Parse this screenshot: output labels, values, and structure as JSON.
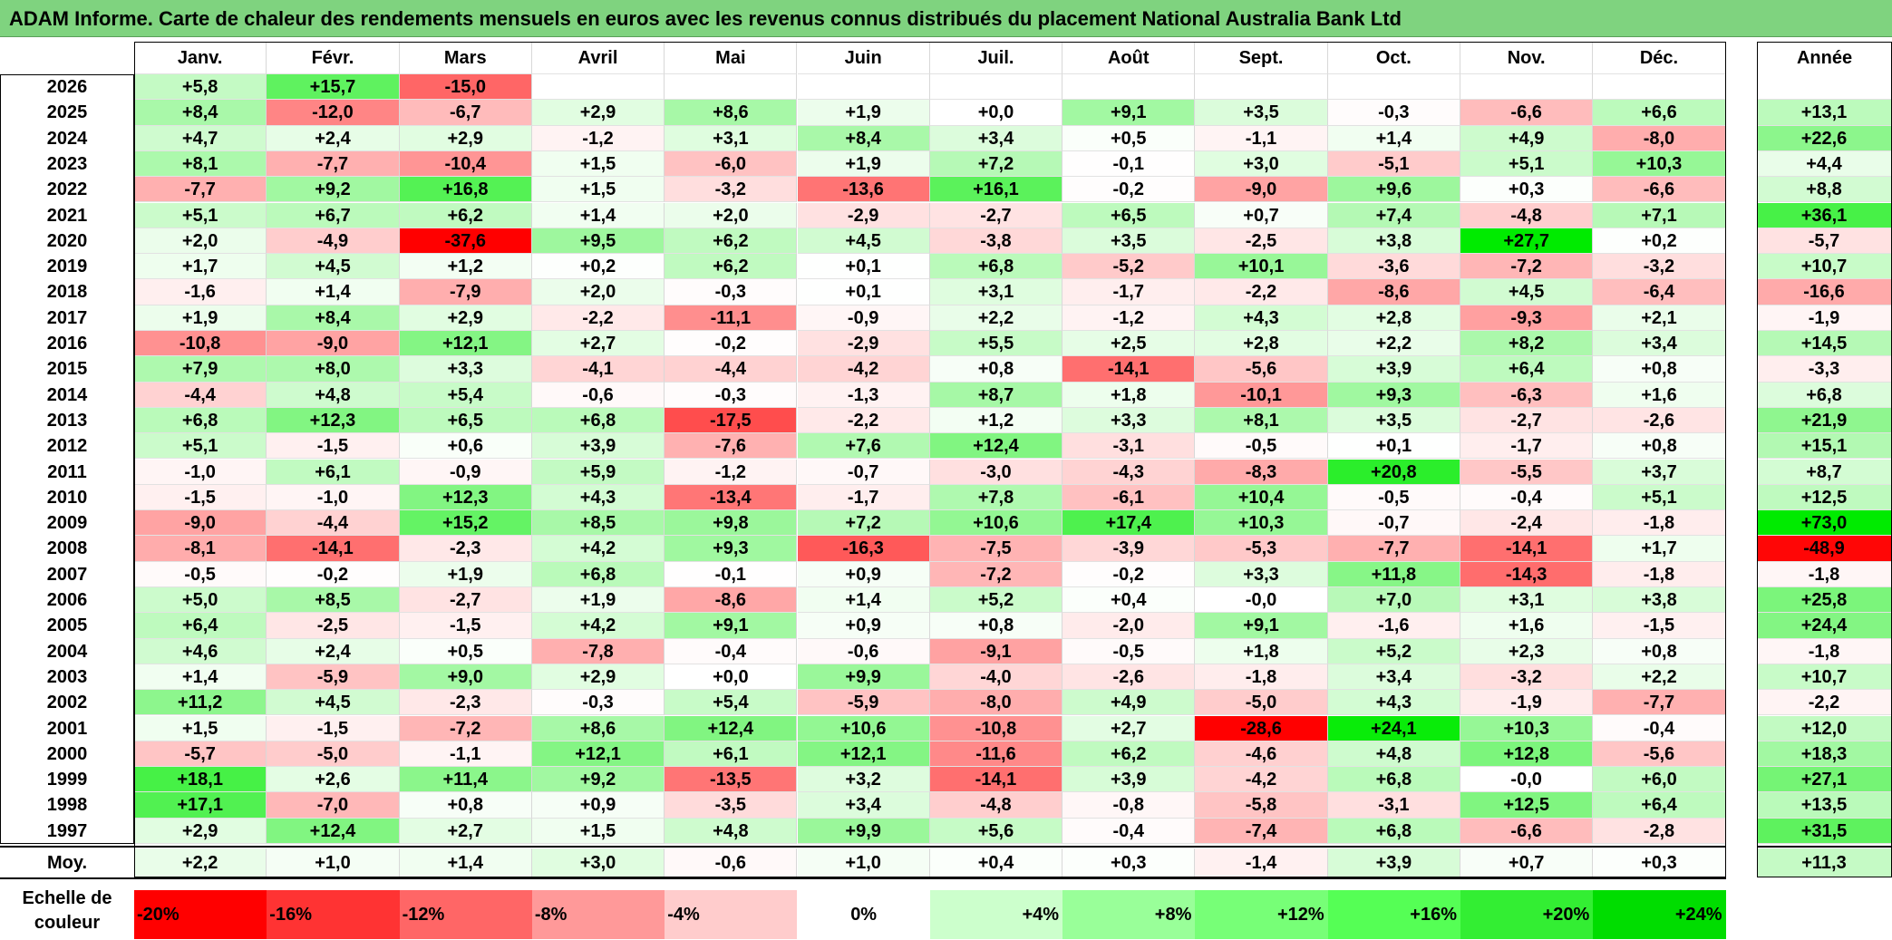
{
  "title": "ADAM Informe. Carte de chaleur des rendements mensuels en euros avec les revenus connus distribués du placement National Australia Bank Ltd",
  "chart_data": {
    "type": "heatmap",
    "months": [
      "Janv.",
      "Févr.",
      "Mars",
      "Avril",
      "Mai",
      "Juin",
      "Juil.",
      "Août",
      "Sept.",
      "Oct.",
      "Nov.",
      "Déc."
    ],
    "year_header": "Année",
    "rows": [
      {
        "year": "2026",
        "months": [
          "+5,8",
          "+15,7",
          "-15,0",
          "",
          "",
          "",
          "",
          "",
          "",
          "",
          "",
          ""
        ],
        "annual": ""
      },
      {
        "year": "2025",
        "months": [
          "+8,4",
          "-12,0",
          "-6,7",
          "+2,9",
          "+8,6",
          "+1,9",
          "+0,0",
          "+9,1",
          "+3,5",
          "-0,3",
          "-6,6",
          "+6,6"
        ],
        "annual": "+13,1"
      },
      {
        "year": "2024",
        "months": [
          "+4,7",
          "+2,4",
          "+2,9",
          "-1,2",
          "+3,1",
          "+8,4",
          "+3,4",
          "+0,5",
          "-1,1",
          "+1,4",
          "+4,9",
          "-8,0"
        ],
        "annual": "+22,6"
      },
      {
        "year": "2023",
        "months": [
          "+8,1",
          "-7,7",
          "-10,4",
          "+1,5",
          "-6,0",
          "+1,9",
          "+7,2",
          "-0,1",
          "+3,0",
          "-5,1",
          "+5,1",
          "+10,3"
        ],
        "annual": "+4,4"
      },
      {
        "year": "2022",
        "months": [
          "-7,7",
          "+9,2",
          "+16,8",
          "+1,5",
          "-3,2",
          "-13,6",
          "+16,1",
          "-0,2",
          "-9,0",
          "+9,6",
          "+0,3",
          "-6,6"
        ],
        "annual": "+8,8"
      },
      {
        "year": "2021",
        "months": [
          "+5,1",
          "+6,7",
          "+6,2",
          "+1,4",
          "+2,0",
          "-2,9",
          "-2,7",
          "+6,5",
          "+0,7",
          "+7,4",
          "-4,8",
          "+7,1"
        ],
        "annual": "+36,1"
      },
      {
        "year": "2020",
        "months": [
          "+2,0",
          "-4,9",
          "-37,6",
          "+9,5",
          "+6,2",
          "+4,5",
          "-3,8",
          "+3,5",
          "-2,5",
          "+3,8",
          "+27,7",
          "+0,2"
        ],
        "annual": "-5,7"
      },
      {
        "year": "2019",
        "months": [
          "+1,7",
          "+4,5",
          "+1,2",
          "+0,2",
          "+6,2",
          "+0,1",
          "+6,8",
          "-5,2",
          "+10,1",
          "-3,6",
          "-7,2",
          "-3,2"
        ],
        "annual": "+10,7"
      },
      {
        "year": "2018",
        "months": [
          "-1,6",
          "+1,4",
          "-7,9",
          "+2,0",
          "-0,3",
          "+0,1",
          "+3,1",
          "-1,7",
          "-2,2",
          "-8,6",
          "+4,5",
          "-6,4"
        ],
        "annual": "-16,6"
      },
      {
        "year": "2017",
        "months": [
          "+1,9",
          "+8,4",
          "+2,9",
          "-2,2",
          "-11,1",
          "-0,9",
          "+2,2",
          "-1,2",
          "+4,3",
          "+2,8",
          "-9,3",
          "+2,1"
        ],
        "annual": "-1,9"
      },
      {
        "year": "2016",
        "months": [
          "-10,8",
          "-9,0",
          "+12,1",
          "+2,7",
          "-0,2",
          "-2,9",
          "+5,5",
          "+2,5",
          "+2,8",
          "+2,2",
          "+8,2",
          "+3,4"
        ],
        "annual": "+14,5"
      },
      {
        "year": "2015",
        "months": [
          "+7,9",
          "+8,0",
          "+3,3",
          "-4,1",
          "-4,4",
          "-4,2",
          "+0,8",
          "-14,1",
          "-5,6",
          "+3,9",
          "+6,4",
          "+0,8"
        ],
        "annual": "-3,3"
      },
      {
        "year": "2014",
        "months": [
          "-4,4",
          "+4,8",
          "+5,4",
          "-0,6",
          "-0,3",
          "-1,3",
          "+8,7",
          "+1,8",
          "-10,1",
          "+9,3",
          "-6,3",
          "+1,6"
        ],
        "annual": "+6,8"
      },
      {
        "year": "2013",
        "months": [
          "+6,8",
          "+12,3",
          "+6,5",
          "+6,8",
          "-17,5",
          "-2,2",
          "+1,2",
          "+3,3",
          "+8,1",
          "+3,5",
          "-2,7",
          "-2,6"
        ],
        "annual": "+21,9"
      },
      {
        "year": "2012",
        "months": [
          "+5,1",
          "-1,5",
          "+0,6",
          "+3,9",
          "-7,6",
          "+7,6",
          "+12,4",
          "-3,1",
          "-0,5",
          "+0,1",
          "-1,7",
          "+0,8"
        ],
        "annual": "+15,1"
      },
      {
        "year": "2011",
        "months": [
          "-1,0",
          "+6,1",
          "-0,9",
          "+5,9",
          "-1,2",
          "-0,7",
          "-3,0",
          "-4,3",
          "-8,3",
          "+20,8",
          "-5,5",
          "+3,7"
        ],
        "annual": "+8,7"
      },
      {
        "year": "2010",
        "months": [
          "-1,5",
          "-1,0",
          "+12,3",
          "+4,3",
          "-13,4",
          "-1,7",
          "+7,8",
          "-6,1",
          "+10,4",
          "-0,5",
          "-0,4",
          "+5,1"
        ],
        "annual": "+12,5"
      },
      {
        "year": "2009",
        "months": [
          "-9,0",
          "-4,4",
          "+15,2",
          "+8,5",
          "+9,8",
          "+7,2",
          "+10,6",
          "+17,4",
          "+10,3",
          "-0,7",
          "-2,4",
          "-1,8"
        ],
        "annual": "+73,0"
      },
      {
        "year": "2008",
        "months": [
          "-8,1",
          "-14,1",
          "-2,3",
          "+4,2",
          "+9,3",
          "-16,3",
          "-7,5",
          "-3,9",
          "-5,3",
          "-7,7",
          "-14,1",
          "+1,7"
        ],
        "annual": "-48,9"
      },
      {
        "year": "2007",
        "months": [
          "-0,5",
          "-0,2",
          "+1,9",
          "+6,8",
          "-0,1",
          "+0,9",
          "-7,2",
          "-0,2",
          "+3,3",
          "+11,8",
          "-14,3",
          "-1,8"
        ],
        "annual": "-1,8"
      },
      {
        "year": "2006",
        "months": [
          "+5,0",
          "+8,5",
          "-2,7",
          "+1,9",
          "-8,6",
          "+1,4",
          "+5,2",
          "+0,4",
          "-0,0",
          "+7,0",
          "+3,1",
          "+3,8"
        ],
        "annual": "+25,8"
      },
      {
        "year": "2005",
        "months": [
          "+6,4",
          "-2,5",
          "-1,5",
          "+4,2",
          "+9,1",
          "+0,9",
          "+0,8",
          "-2,0",
          "+9,1",
          "-1,6",
          "+1,6",
          "-1,5"
        ],
        "annual": "+24,4"
      },
      {
        "year": "2004",
        "months": [
          "+4,6",
          "+2,4",
          "+0,5",
          "-7,8",
          "-0,4",
          "-0,6",
          "-9,1",
          "-0,5",
          "+1,8",
          "+5,2",
          "+2,3",
          "+0,8"
        ],
        "annual": "-1,8"
      },
      {
        "year": "2003",
        "months": [
          "+1,4",
          "-5,9",
          "+9,0",
          "+2,9",
          "+0,0",
          "+9,9",
          "-4,0",
          "-2,6",
          "-1,8",
          "+3,4",
          "-3,2",
          "+2,2"
        ],
        "annual": "+10,7"
      },
      {
        "year": "2002",
        "months": [
          "+11,2",
          "+4,5",
          "-2,3",
          "-0,3",
          "+5,4",
          "-5,9",
          "-8,0",
          "+4,9",
          "-5,0",
          "+4,3",
          "-1,9",
          "-7,7"
        ],
        "annual": "-2,2"
      },
      {
        "year": "2001",
        "months": [
          "+1,5",
          "-1,5",
          "-7,2",
          "+8,6",
          "+12,4",
          "+10,6",
          "-10,8",
          "+2,7",
          "-28,6",
          "+24,1",
          "+10,3",
          "-0,4"
        ],
        "annual": "+12,0"
      },
      {
        "year": "2000",
        "months": [
          "-5,7",
          "-5,0",
          "-1,1",
          "+12,1",
          "+6,1",
          "+12,1",
          "-11,6",
          "+6,2",
          "-4,6",
          "+4,8",
          "+12,8",
          "-5,6"
        ],
        "annual": "+18,3"
      },
      {
        "year": "1999",
        "months": [
          "+18,1",
          "+2,6",
          "+11,4",
          "+9,2",
          "-13,5",
          "+3,2",
          "-14,1",
          "+3,9",
          "-4,2",
          "+6,8",
          "-0,0",
          "+6,0"
        ],
        "annual": "+27,1"
      },
      {
        "year": "1998",
        "months": [
          "+17,1",
          "-7,0",
          "+0,8",
          "+0,9",
          "-3,5",
          "+3,4",
          "-4,8",
          "-0,8",
          "-5,8",
          "-3,1",
          "+12,5",
          "+6,4"
        ],
        "annual": "+13,5"
      },
      {
        "year": "1997",
        "months": [
          "+2,9",
          "+12,4",
          "+2,7",
          "+1,5",
          "+4,8",
          "+9,9",
          "+5,6",
          "-0,4",
          "-7,4",
          "+6,8",
          "-6,6",
          "-2,8"
        ],
        "annual": "+31,5"
      }
    ],
    "average": {
      "label": "Moy.",
      "months": [
        "+2,2",
        "+1,0",
        "+1,4",
        "+3,0",
        "-0,6",
        "+1,0",
        "+0,4",
        "+0,3",
        "-1,4",
        "+3,9",
        "+0,7",
        "+0,3"
      ],
      "annual": "+11,3"
    },
    "legend": {
      "label": "Echelle de couleur",
      "stops": [
        "-20%",
        "-16%",
        "-12%",
        "-8%",
        "-4%",
        "0%",
        "+4%",
        "+8%",
        "+12%",
        "+16%",
        "+20%",
        "+24%"
      ],
      "colors": [
        "#ff0000",
        "#ff3333",
        "#ff6666",
        "#ff9999",
        "#ffcccc",
        "#ffffff",
        "#ccffcc",
        "#99ff99",
        "#77ff77",
        "#55ff55",
        "#33ee33",
        "#00dd00"
      ]
    }
  }
}
